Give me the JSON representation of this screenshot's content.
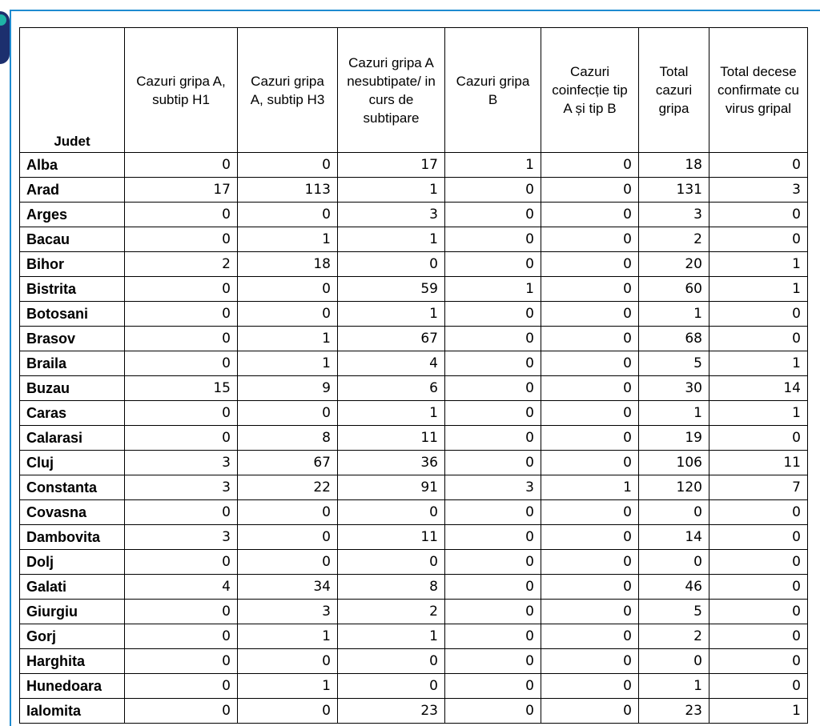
{
  "table": {
    "headers": [
      "Judet",
      "Cazuri gripa A, subtip H1",
      "Cazuri gripa A, subtip H3",
      "Cazuri gripa A nesubtipate/ in curs de subtipare",
      "Cazuri gripa B",
      "Cazuri coinfecție tip A și tip B",
      "Total cazuri gripa",
      "Total decese confirmate cu virus gripal"
    ],
    "rows": [
      [
        "Alba",
        0,
        0,
        17,
        1,
        0,
        18,
        0
      ],
      [
        "Arad",
        17,
        113,
        1,
        0,
        0,
        131,
        3
      ],
      [
        "Arges",
        0,
        0,
        3,
        0,
        0,
        3,
        0
      ],
      [
        "Bacau",
        0,
        1,
        1,
        0,
        0,
        2,
        0
      ],
      [
        "Bihor",
        2,
        18,
        0,
        0,
        0,
        20,
        1
      ],
      [
        "Bistrita",
        0,
        0,
        59,
        1,
        0,
        60,
        1
      ],
      [
        "Botosani",
        0,
        0,
        1,
        0,
        0,
        1,
        0
      ],
      [
        "Brasov",
        0,
        1,
        67,
        0,
        0,
        68,
        0
      ],
      [
        "Braila",
        0,
        1,
        4,
        0,
        0,
        5,
        1
      ],
      [
        "Buzau",
        15,
        9,
        6,
        0,
        0,
        30,
        14
      ],
      [
        "Caras",
        0,
        0,
        1,
        0,
        0,
        1,
        1
      ],
      [
        "Calarasi",
        0,
        8,
        11,
        0,
        0,
        19,
        0
      ],
      [
        "Cluj",
        3,
        67,
        36,
        0,
        0,
        106,
        11
      ],
      [
        "Constanta",
        3,
        22,
        91,
        3,
        1,
        120,
        7
      ],
      [
        "Covasna",
        0,
        0,
        0,
        0,
        0,
        0,
        0
      ],
      [
        "Dambovita",
        3,
        0,
        11,
        0,
        0,
        14,
        0
      ],
      [
        "Dolj",
        0,
        0,
        0,
        0,
        0,
        0,
        0
      ],
      [
        "Galati",
        4,
        34,
        8,
        0,
        0,
        46,
        0
      ],
      [
        "Giurgiu",
        0,
        3,
        2,
        0,
        0,
        5,
        0
      ],
      [
        "Gorj",
        0,
        1,
        1,
        0,
        0,
        2,
        0
      ],
      [
        "Harghita",
        0,
        0,
        0,
        0,
        0,
        0,
        0
      ],
      [
        "Hunedoara",
        0,
        1,
        0,
        0,
        0,
        1,
        0
      ],
      [
        "Ialomita",
        0,
        0,
        23,
        0,
        0,
        23,
        1
      ]
    ]
  }
}
